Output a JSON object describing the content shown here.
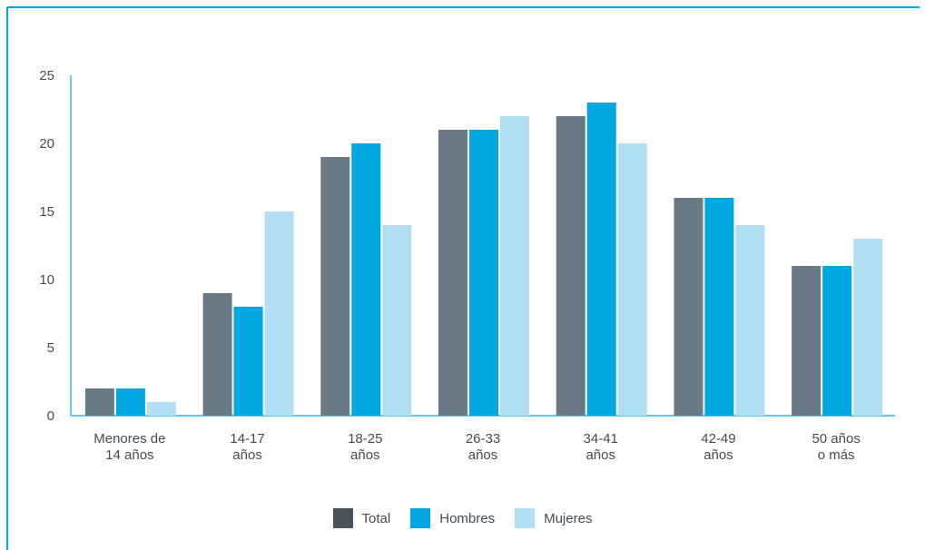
{
  "colors": {
    "frame": "#00a7e1",
    "axis": "#00a7e1",
    "text": "#444c52",
    "total": "#6a7a84",
    "hombres": "#00a7e1",
    "mujeres": "#b3dff5",
    "legend_total": "#4a525a"
  },
  "chart_data": {
    "type": "bar",
    "categories": [
      [
        "Menores de",
        "14 años"
      ],
      [
        "14-17",
        "años"
      ],
      [
        "18-25",
        "años"
      ],
      [
        "26-33",
        "años"
      ],
      [
        "34-41",
        "años"
      ],
      [
        "42-49",
        "años"
      ],
      [
        "50 años",
        "o más"
      ]
    ],
    "series": [
      {
        "name": "Total",
        "values": [
          2,
          9,
          19,
          21,
          22,
          16,
          11
        ]
      },
      {
        "name": "Hombres",
        "values": [
          2,
          8,
          20,
          21,
          23,
          16,
          11
        ]
      },
      {
        "name": "Mujeres",
        "values": [
          1,
          15,
          14,
          22,
          20,
          14,
          13
        ]
      }
    ],
    "ylim": [
      0,
      25
    ],
    "yticks": [
      "0",
      "5",
      "10",
      "15",
      "20",
      "25"
    ],
    "grid": false,
    "legend_position": "bottom-center"
  }
}
